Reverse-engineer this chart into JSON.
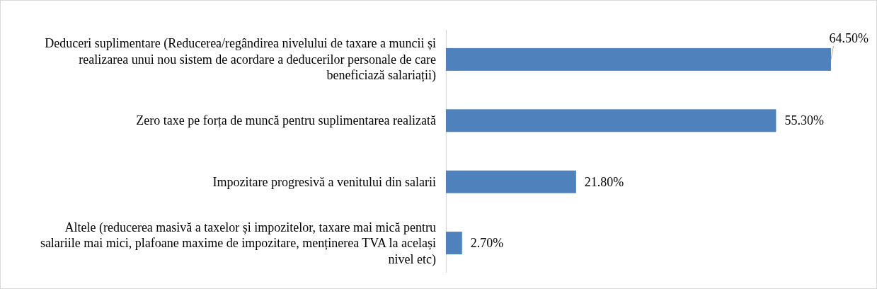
{
  "chart_data": {
    "type": "bar",
    "orientation": "horizontal",
    "categories": [
      "Deduceri suplimentare (Reducerea/regândirea nivelului de taxare a muncii și realizarea unui nou sistem de acordare a deducerilor personale de care beneficiază salariații)",
      "Zero taxe pe forța de muncă pentru suplimentarea realizată",
      "Impozitare progresivă a venitului din salarii",
      "Altele (reducerea masivă a taxelor și impozitelor, taxare mai mică pentru salariile mai mici, plafoane maxime de impozitare, menținerea TVA la același nivel etc)"
    ],
    "values": [
      64.5,
      55.3,
      21.8,
      2.7
    ],
    "color": "#4f81bd",
    "value_labels": [
      "64.50%",
      "55.30%",
      "21.80%",
      "2.70%"
    ],
    "tick_labels": "y"
  }
}
